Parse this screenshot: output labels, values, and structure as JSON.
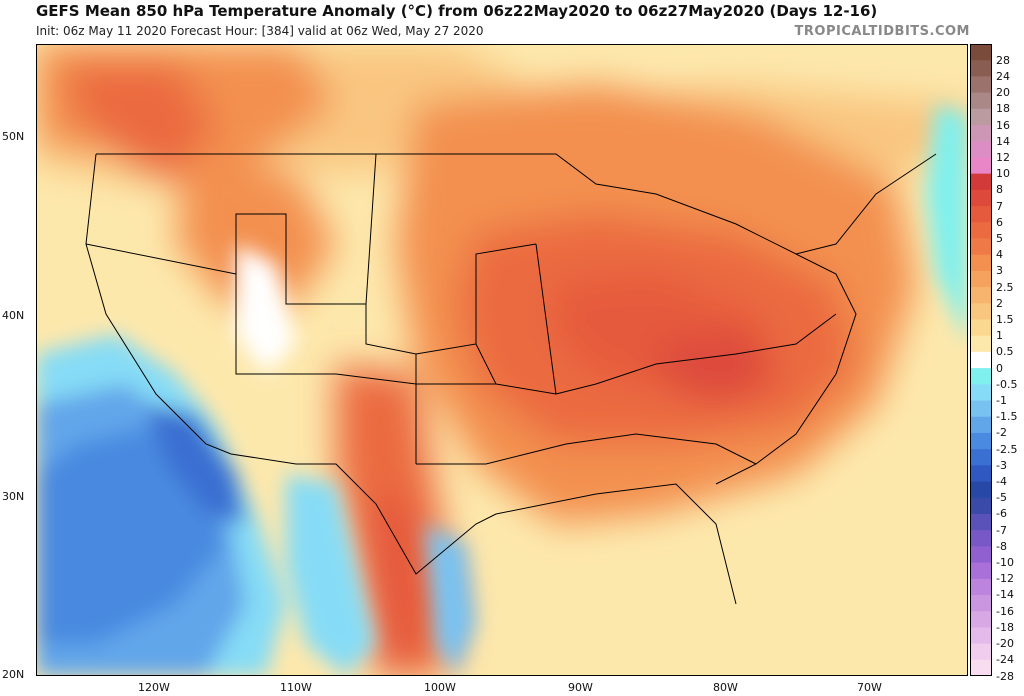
{
  "header": {
    "title": "GEFS Mean 850 hPa Temperature Anomaly (°C) from 06z22May2020 to 06z27May2020 (Days 12-16)",
    "subtitle": "Init: 06z May 11 2020   Forecast Hour: [384]   valid at 06z Wed, May 27 2020",
    "brand": "TROPICALTIDBITS.COM"
  },
  "map": {
    "lat_labels": [
      "50N",
      "40N",
      "30N",
      "20N"
    ],
    "lon_labels": [
      "120W",
      "110W",
      "100W",
      "90W",
      "80W",
      "70W"
    ]
  },
  "legend": {
    "labels": [
      "28",
      "24",
      "20",
      "18",
      "16",
      "14",
      "12",
      "10",
      "8",
      "7",
      "6",
      "5",
      "4",
      "3",
      "2.5",
      "2",
      "1.5",
      "1",
      "0.5",
      "0",
      "-0.5",
      "-1",
      "-1.5",
      "-2",
      "-2.5",
      "-3",
      "-4",
      "-5",
      "-6",
      "-7",
      "-8",
      "-10",
      "-12",
      "-14",
      "-16",
      "-18",
      "-20",
      "-24",
      "-28"
    ],
    "colors": [
      "#7a4a3a",
      "#8a5d52",
      "#9b736c",
      "#ab8888",
      "#bb9aa0",
      "#cc96b4",
      "#dc8ec4",
      "#e986c8",
      "#d23a3a",
      "#dd4a3c",
      "#e55a3c",
      "#eb6a40",
      "#ef7a48",
      "#f39050",
      "#f5a25e",
      "#f7b46e",
      "#f9c680",
      "#fbd890",
      "#fde8ac",
      "#ffffff",
      "#7ff0ee",
      "#86dcf6",
      "#78c2f2",
      "#62a6ea",
      "#4a8ae0",
      "#3a70d2",
      "#2f58c0",
      "#2848a8",
      "#3a4aa8",
      "#5a52b8",
      "#7858c6",
      "#9060d0",
      "#a870d8",
      "#bc84de",
      "#ca96e0",
      "#d8a8e4",
      "#e4baea",
      "#f0ccee",
      "#f8dcf0"
    ]
  }
}
